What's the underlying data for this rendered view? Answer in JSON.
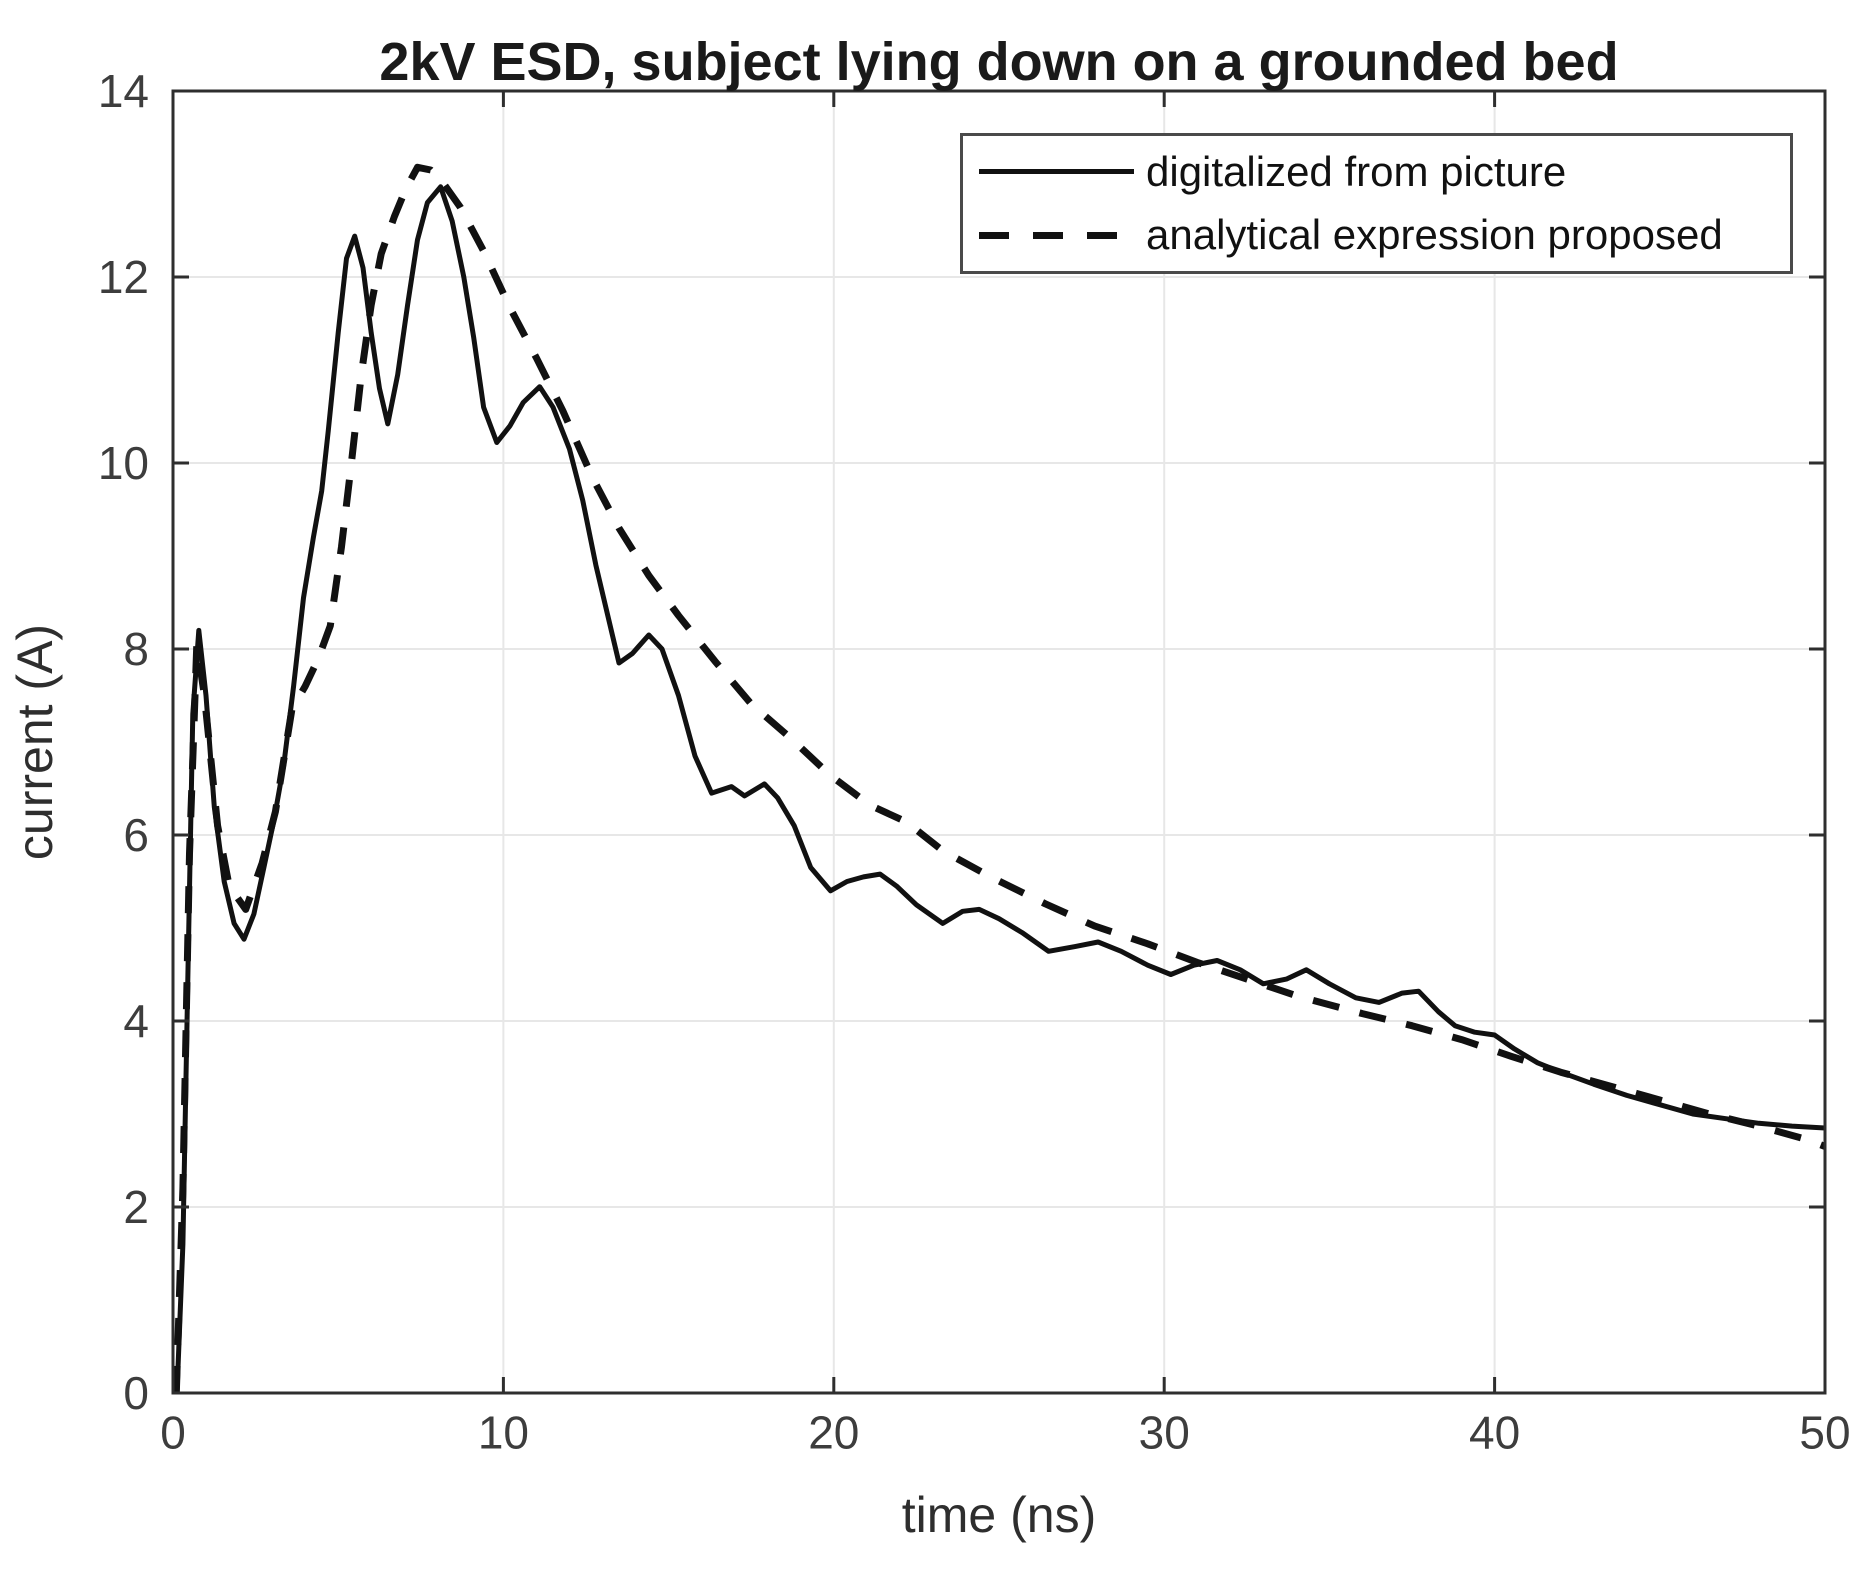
{
  "figure": {
    "title": "2kV ESD, subject lying down on a grounded bed",
    "xlabel": "time (ns)",
    "ylabel": "current (A)"
  },
  "colors": {
    "line": "#111111",
    "axis_box": "#2e2e2e",
    "grid": "#e7e7e7",
    "tick_label": "#3d3d3d",
    "title": "#1a1a1a",
    "legend_border": "#4a4a4a",
    "background": "#ffffff"
  },
  "chart_data": {
    "type": "line",
    "title": "2kV ESD, subject lying down on a grounded bed",
    "xlabel": "time (ns)",
    "ylabel": "current (A)",
    "xlim": [
      0,
      50
    ],
    "ylim": [
      0,
      14
    ],
    "xticks": [
      0,
      10,
      20,
      30,
      40,
      50
    ],
    "yticks": [
      0,
      2,
      4,
      6,
      8,
      10,
      12,
      14
    ],
    "grid": true,
    "legend_position": "top-right",
    "series": [
      {
        "name": "digitalized from picture",
        "style": "solid",
        "line_width": 5,
        "points": [
          [
            0.12,
            0
          ],
          [
            0.3,
            1.6
          ],
          [
            0.45,
            4.5
          ],
          [
            0.6,
            7.3
          ],
          [
            0.78,
            8.2
          ],
          [
            1.0,
            7.5
          ],
          [
            1.25,
            6.3
          ],
          [
            1.55,
            5.5
          ],
          [
            1.85,
            5.05
          ],
          [
            2.15,
            4.88
          ],
          [
            2.45,
            5.15
          ],
          [
            2.75,
            5.65
          ],
          [
            3.05,
            6.15
          ],
          [
            3.35,
            6.75
          ],
          [
            3.65,
            7.6
          ],
          [
            3.95,
            8.55
          ],
          [
            4.25,
            9.2
          ],
          [
            4.5,
            9.7
          ],
          [
            4.7,
            10.35
          ],
          [
            5.0,
            11.4
          ],
          [
            5.25,
            12.2
          ],
          [
            5.5,
            12.44
          ],
          [
            5.75,
            12.1
          ],
          [
            6.0,
            11.4
          ],
          [
            6.25,
            10.8
          ],
          [
            6.5,
            10.42
          ],
          [
            6.8,
            10.95
          ],
          [
            7.1,
            11.7
          ],
          [
            7.4,
            12.4
          ],
          [
            7.7,
            12.8
          ],
          [
            8.1,
            12.97
          ],
          [
            8.45,
            12.6
          ],
          [
            8.8,
            12.0
          ],
          [
            9.1,
            11.35
          ],
          [
            9.4,
            10.6
          ],
          [
            9.8,
            10.22
          ],
          [
            10.2,
            10.4
          ],
          [
            10.6,
            10.65
          ],
          [
            11.1,
            10.82
          ],
          [
            11.5,
            10.6
          ],
          [
            12.0,
            10.15
          ],
          [
            12.4,
            9.6
          ],
          [
            12.8,
            8.9
          ],
          [
            13.1,
            8.45
          ],
          [
            13.5,
            7.85
          ],
          [
            13.9,
            7.95
          ],
          [
            14.4,
            8.15
          ],
          [
            14.8,
            8.0
          ],
          [
            15.3,
            7.5
          ],
          [
            15.8,
            6.85
          ],
          [
            16.3,
            6.45
          ],
          [
            16.9,
            6.52
          ],
          [
            17.3,
            6.42
          ],
          [
            17.9,
            6.55
          ],
          [
            18.3,
            6.4
          ],
          [
            18.8,
            6.1
          ],
          [
            19.3,
            5.65
          ],
          [
            19.9,
            5.4
          ],
          [
            20.4,
            5.5
          ],
          [
            20.9,
            5.55
          ],
          [
            21.4,
            5.58
          ],
          [
            21.9,
            5.45
          ],
          [
            22.5,
            5.25
          ],
          [
            23.3,
            5.05
          ],
          [
            23.9,
            5.18
          ],
          [
            24.4,
            5.2
          ],
          [
            25.0,
            5.1
          ],
          [
            25.7,
            4.95
          ],
          [
            26.5,
            4.75
          ],
          [
            27.3,
            4.8
          ],
          [
            28.0,
            4.85
          ],
          [
            28.7,
            4.75
          ],
          [
            29.5,
            4.6
          ],
          [
            30.2,
            4.5
          ],
          [
            30.9,
            4.6
          ],
          [
            31.6,
            4.65
          ],
          [
            32.3,
            4.55
          ],
          [
            33.0,
            4.4
          ],
          [
            33.7,
            4.45
          ],
          [
            34.3,
            4.55
          ],
          [
            35.0,
            4.4
          ],
          [
            35.8,
            4.25
          ],
          [
            36.5,
            4.2
          ],
          [
            37.2,
            4.3
          ],
          [
            37.7,
            4.32
          ],
          [
            38.3,
            4.1
          ],
          [
            38.8,
            3.95
          ],
          [
            39.4,
            3.88
          ],
          [
            40.0,
            3.85
          ],
          [
            40.6,
            3.7
          ],
          [
            41.3,
            3.55
          ],
          [
            42.0,
            3.45
          ],
          [
            43.0,
            3.32
          ],
          [
            44.0,
            3.2
          ],
          [
            45.0,
            3.1
          ],
          [
            46.0,
            3.0
          ],
          [
            47.0,
            2.95
          ],
          [
            48.0,
            2.9
          ],
          [
            49.0,
            2.87
          ],
          [
            50.0,
            2.85
          ]
        ]
      },
      {
        "name": "analytical expression proposed",
        "style": "dashed",
        "line_width": 7,
        "dash": [
          27,
          21
        ],
        "points": [
          [
            0.1,
            0
          ],
          [
            0.3,
            2.2
          ],
          [
            0.5,
            5.8
          ],
          [
            0.72,
            8.05
          ],
          [
            0.95,
            7.5
          ],
          [
            1.35,
            6.1
          ],
          [
            1.7,
            5.45
          ],
          [
            2.2,
            5.2
          ],
          [
            2.7,
            5.7
          ],
          [
            3.1,
            6.25
          ],
          [
            3.6,
            7.35
          ],
          [
            4.0,
            7.6
          ],
          [
            4.4,
            7.9
          ],
          [
            4.76,
            8.25
          ],
          [
            5.1,
            9.1
          ],
          [
            5.4,
            10.0
          ],
          [
            5.7,
            10.95
          ],
          [
            6.0,
            11.7
          ],
          [
            6.3,
            12.25
          ],
          [
            6.7,
            12.65
          ],
          [
            7.05,
            12.95
          ],
          [
            7.4,
            13.18
          ],
          [
            7.8,
            13.15
          ],
          [
            8.2,
            13.0
          ],
          [
            8.7,
            12.75
          ],
          [
            9.4,
            12.28
          ],
          [
            10.2,
            11.67
          ],
          [
            11.0,
            11.13
          ],
          [
            11.8,
            10.56
          ],
          [
            12.7,
            9.84
          ],
          [
            13.5,
            9.3
          ],
          [
            14.4,
            8.79
          ],
          [
            15.3,
            8.36
          ],
          [
            16.4,
            7.87
          ],
          [
            17.5,
            7.41
          ],
          [
            18.7,
            7.04
          ],
          [
            19.9,
            6.64
          ],
          [
            21.1,
            6.32
          ],
          [
            22.2,
            6.14
          ],
          [
            23.3,
            5.83
          ],
          [
            24.8,
            5.54
          ],
          [
            26.4,
            5.26
          ],
          [
            27.9,
            5.02
          ],
          [
            29.5,
            4.83
          ],
          [
            31.0,
            4.63
          ],
          [
            32.5,
            4.45
          ],
          [
            34.1,
            4.26
          ],
          [
            36.0,
            4.08
          ],
          [
            37.5,
            3.95
          ],
          [
            39.0,
            3.8
          ],
          [
            40.5,
            3.62
          ],
          [
            42.0,
            3.45
          ],
          [
            43.5,
            3.3
          ],
          [
            45.0,
            3.15
          ],
          [
            46.5,
            3.0
          ],
          [
            48.0,
            2.87
          ],
          [
            49.5,
            2.72
          ],
          [
            50.0,
            2.65
          ]
        ]
      }
    ]
  }
}
